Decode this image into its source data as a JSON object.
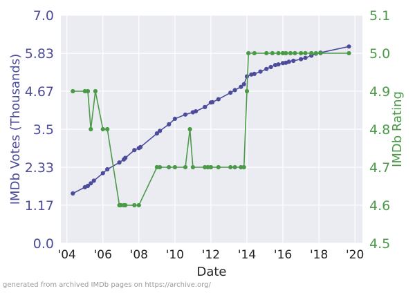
{
  "chart_data": {
    "type": "line",
    "xlabel": "Date",
    "ylabel_left": "IMDb Votes (Thousands)",
    "ylabel_right": "IMDb Rating",
    "footer": "generated from archived IMDb pages on https://archive.org/",
    "x_ticks": [
      {
        "value": "2004-01-01",
        "label": "'04"
      },
      {
        "value": "2006-01-01",
        "label": "'06"
      },
      {
        "value": "2008-01-01",
        "label": "'08"
      },
      {
        "value": "2010-01-01",
        "label": "'10"
      },
      {
        "value": "2012-01-01",
        "label": "'12"
      },
      {
        "value": "2014-01-01",
        "label": "'14"
      },
      {
        "value": "2016-01-01",
        "label": "'16"
      },
      {
        "value": "2018-01-01",
        "label": "'18"
      },
      {
        "value": "2020-01-01",
        "label": "'20"
      }
    ],
    "x_range": [
      "2003-09-01",
      "2020-06-01"
    ],
    "y_left": {
      "range": [
        0.0,
        7.0
      ],
      "ticks": [
        "0.0",
        "1.17",
        "2.33",
        "3.5",
        "4.67",
        "5.83",
        "7.0"
      ]
    },
    "y_right": {
      "range": [
        4.5,
        5.1
      ],
      "ticks": [
        "4.5",
        "4.6",
        "4.7",
        "4.8",
        "4.9",
        "5.0",
        "5.1"
      ]
    },
    "grid": true,
    "colors": {
      "votes": "#4c4c9a",
      "rating": "#4a9a48",
      "axis_left": "#4c4c9a",
      "axis_right": "#4a9a48",
      "background": "#ebebf2",
      "grid": "#ffffff"
    },
    "series": [
      {
        "axis": "left",
        "points": [
          [
            "2004-05-01",
            1.53
          ],
          [
            "2005-01-01",
            1.72
          ],
          [
            "2005-03-01",
            1.76
          ],
          [
            "2005-05-01",
            1.84
          ],
          [
            "2005-07-01",
            1.92
          ],
          [
            "2006-01-01",
            2.15
          ],
          [
            "2006-04-01",
            2.27
          ],
          [
            "2006-12-01",
            2.48
          ],
          [
            "2007-03-01",
            2.57
          ],
          [
            "2007-04-01",
            2.62
          ],
          [
            "2007-10-01",
            2.86
          ],
          [
            "2008-01-01",
            2.92
          ],
          [
            "2008-02-01",
            2.95
          ],
          [
            "2009-01-01",
            3.37
          ],
          [
            "2009-03-01",
            3.45
          ],
          [
            "2009-09-01",
            3.65
          ],
          [
            "2010-01-01",
            3.82
          ],
          [
            "2010-08-01",
            3.95
          ],
          [
            "2011-01-01",
            4.02
          ],
          [
            "2011-03-01",
            4.05
          ],
          [
            "2011-09-01",
            4.18
          ],
          [
            "2012-01-01",
            4.32
          ],
          [
            "2012-02-01",
            4.33
          ],
          [
            "2012-06-01",
            4.42
          ],
          [
            "2013-02-01",
            4.62
          ],
          [
            "2013-05-01",
            4.7
          ],
          [
            "2013-09-01",
            4.8
          ],
          [
            "2013-11-01",
            4.88
          ],
          [
            "2014-01-01",
            5.12
          ],
          [
            "2014-04-01",
            5.18
          ],
          [
            "2014-06-01",
            5.2
          ],
          [
            "2014-10-01",
            5.27
          ],
          [
            "2015-02-01",
            5.35
          ],
          [
            "2015-05-01",
            5.41
          ],
          [
            "2015-08-01",
            5.47
          ],
          [
            "2015-10-01",
            5.49
          ],
          [
            "2016-01-01",
            5.53
          ],
          [
            "2016-03-01",
            5.54
          ],
          [
            "2016-05-01",
            5.57
          ],
          [
            "2016-08-01",
            5.6
          ],
          [
            "2017-01-01",
            5.65
          ],
          [
            "2017-04-01",
            5.69
          ],
          [
            "2017-08-01",
            5.76
          ],
          [
            "2017-11-01",
            5.82
          ],
          [
            "2018-02-01",
            5.85
          ],
          [
            "2019-09-01",
            6.04
          ]
        ]
      },
      {
        "axis": "right",
        "points": [
          [
            "2004-05-01",
            4.9
          ],
          [
            "2005-01-01",
            4.9
          ],
          [
            "2005-03-01",
            4.9
          ],
          [
            "2005-05-01",
            4.8
          ],
          [
            "2005-08-01",
            4.9
          ],
          [
            "2006-01-01",
            4.8
          ],
          [
            "2006-04-01",
            4.8
          ],
          [
            "2006-12-01",
            4.6
          ],
          [
            "2007-01-01",
            4.6
          ],
          [
            "2007-03-01",
            4.6
          ],
          [
            "2007-04-01",
            4.6
          ],
          [
            "2007-10-01",
            4.6
          ],
          [
            "2008-01-01",
            4.6
          ],
          [
            "2009-01-01",
            4.7
          ],
          [
            "2009-03-01",
            4.7
          ],
          [
            "2009-09-01",
            4.7
          ],
          [
            "2010-01-01",
            4.7
          ],
          [
            "2010-08-01",
            4.7
          ],
          [
            "2010-11-01",
            4.8
          ],
          [
            "2011-01-01",
            4.7
          ],
          [
            "2011-09-01",
            4.7
          ],
          [
            "2011-11-01",
            4.7
          ],
          [
            "2012-01-01",
            4.7
          ],
          [
            "2012-06-01",
            4.7
          ],
          [
            "2013-02-01",
            4.7
          ],
          [
            "2013-05-01",
            4.7
          ],
          [
            "2013-09-01",
            4.7
          ],
          [
            "2013-11-01",
            4.7
          ],
          [
            "2014-01-01",
            4.9
          ],
          [
            "2014-02-01",
            5.0
          ],
          [
            "2014-06-01",
            5.0
          ],
          [
            "2015-02-01",
            5.0
          ],
          [
            "2015-06-01",
            5.0
          ],
          [
            "2015-10-01",
            5.0
          ],
          [
            "2016-01-01",
            5.0
          ],
          [
            "2016-03-01",
            5.0
          ],
          [
            "2016-06-01",
            5.0
          ],
          [
            "2016-09-01",
            5.0
          ],
          [
            "2017-01-01",
            5.0
          ],
          [
            "2017-04-01",
            5.0
          ],
          [
            "2017-08-01",
            5.0
          ],
          [
            "2017-11-01",
            5.0
          ],
          [
            "2018-02-01",
            5.0
          ],
          [
            "2019-09-01",
            5.0
          ]
        ]
      }
    ]
  }
}
